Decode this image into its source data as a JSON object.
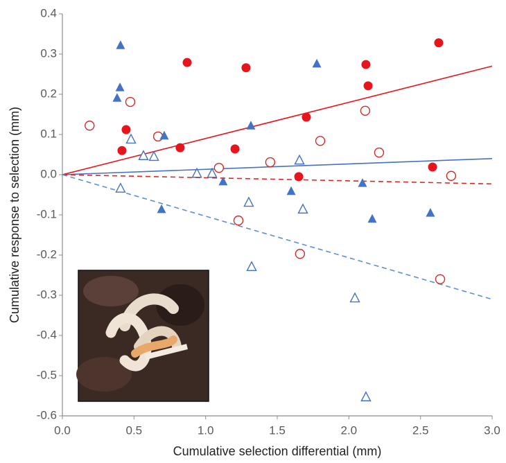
{
  "chart_data": {
    "type": "scatter",
    "xlabel": "Cumulative selection differential (mm)",
    "ylabel": "Cumulative response to selection (mm)",
    "xlim": [
      0,
      3
    ],
    "ylim": [
      -0.6,
      0.4
    ],
    "xticks": [
      {
        "value": 0,
        "label": "0.0"
      },
      0.5,
      {
        "value": 1,
        "label": "1.0"
      },
      1.5,
      {
        "value": 2,
        "label": "2.0"
      },
      2.5,
      {
        "value": 3,
        "label": "3.0"
      }
    ],
    "yticks": [
      0.4,
      0.3,
      0.2,
      0.1,
      {
        "value": 0,
        "label": "0.0"
      },
      -0.1,
      -0.2,
      -0.3,
      -0.4,
      -0.5,
      -0.6
    ],
    "grid": false,
    "series": [
      {
        "marker": "circle",
        "filled": true,
        "color": "#e8141b",
        "x": [
          0.445,
          0.416,
          0.871,
          0.822,
          1.282,
          1.205,
          1.703,
          1.65,
          2.119,
          2.134,
          2.584,
          2.627
        ],
        "values": [
          0.112,
          0.06,
          0.279,
          0.067,
          0.266,
          0.064,
          0.143,
          -0.005,
          0.274,
          0.221,
          0.019,
          0.328
        ]
      },
      {
        "marker": "circle",
        "filled": false,
        "color": "#d42a25",
        "x": [
          0.19,
          0.474,
          0.668,
          1.093,
          1.229,
          1.451,
          1.8,
          1.659,
          2.114,
          2.211,
          2.637,
          2.714
        ],
        "values": [
          0.122,
          0.181,
          0.095,
          0.017,
          -0.114,
          0.031,
          0.084,
          -0.197,
          0.159,
          0.055,
          -0.26,
          -0.003
        ]
      },
      {
        "marker": "triangle",
        "filled": true,
        "color": "#4472c4",
        "x": [
          0.406,
          0.402,
          0.382,
          0.711,
          0.692,
          1.316,
          1.122,
          1.776,
          1.597,
          2.095,
          2.163,
          2.569
        ],
        "values": [
          0.322,
          0.217,
          0.191,
          0.097,
          -0.086,
          0.122,
          -0.017,
          0.276,
          -0.041,
          -0.021,
          -0.11,
          -0.095
        ]
      },
      {
        "marker": "triangle",
        "filled": false,
        "color": "#4472c4",
        "x": [
          0.406,
          0.479,
          0.566,
          0.639,
          0.939,
          1.045,
          1.301,
          1.321,
          1.655,
          1.679,
          2.042,
          2.119
        ],
        "values": [
          -0.034,
          0.088,
          0.047,
          0.045,
          0.003,
          0.003,
          -0.069,
          -0.229,
          0.036,
          -0.086,
          -0.307,
          -0.553
        ]
      },
      {
        "marker": "line",
        "dashed": false,
        "color": "#e8141b",
        "x": [
          0,
          3
        ],
        "values": [
          0,
          0.27
        ]
      },
      {
        "marker": "line",
        "dashed": false,
        "color": "#4472c4",
        "x": [
          0,
          3
        ],
        "values": [
          0,
          0.04
        ]
      },
      {
        "marker": "line",
        "dashed": true,
        "color": "#d42a25",
        "x": [
          0,
          3
        ],
        "values": [
          0,
          -0.023
        ]
      },
      {
        "marker": "line",
        "dashed": true,
        "color": "#5b8fd4",
        "x": [
          0,
          3
        ],
        "values": [
          0,
          -0.31
        ]
      }
    ]
  }
}
